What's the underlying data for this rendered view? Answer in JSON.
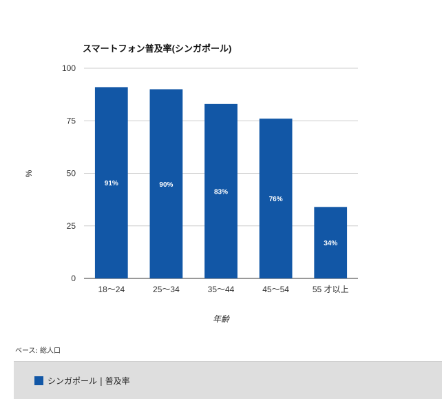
{
  "chart_data": {
    "type": "bar",
    "title": "スマートフォン普及率(シンガポール)",
    "xlabel": "年齢",
    "ylabel": "%",
    "categories": [
      "18～24",
      "25～34",
      "35～44",
      "45～54",
      "55 才以上"
    ],
    "values": [
      91,
      90,
      83,
      76,
      34
    ],
    "data_labels": [
      "91%",
      "90%",
      "83%",
      "76%",
      "34%"
    ],
    "yticks": [
      0,
      25,
      50,
      75,
      100
    ],
    "ylim": [
      0,
      100
    ],
    "grid": true,
    "bar_color": "#1257a6",
    "legend": {
      "placement": "bottom",
      "label": "シンガポール | 普及率"
    }
  },
  "footer": {
    "base_note": "ベース: 総人口"
  }
}
